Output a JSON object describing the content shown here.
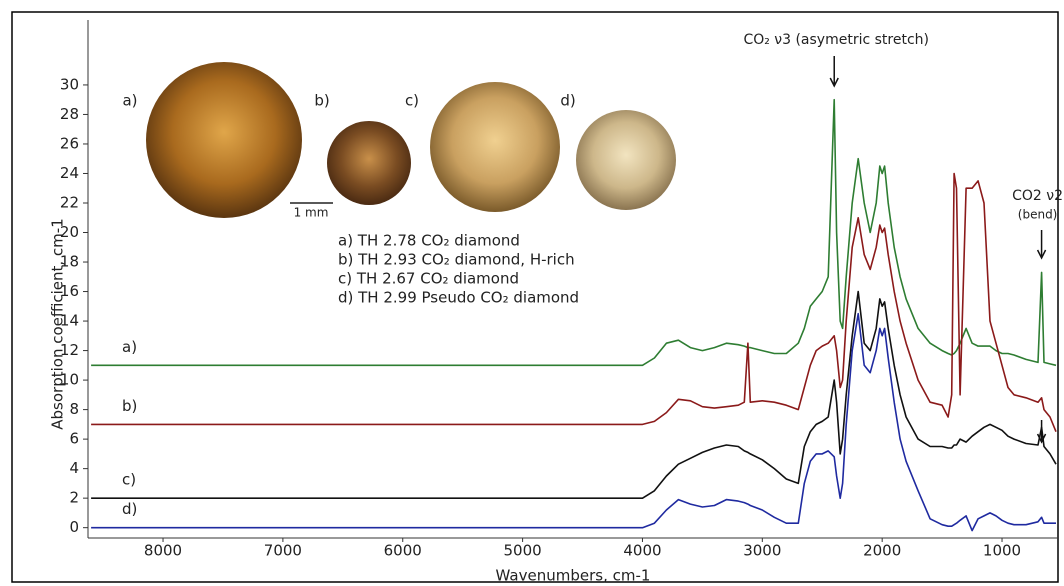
{
  "chart_data": {
    "type": "line",
    "xlabel": "Wavenumbers, cm-1",
    "ylabel": "Absorption coefficient, cm-1",
    "xlim": [
      8626,
      533
    ],
    "ylim": [
      -0.7,
      34.4
    ],
    "xticks": [
      8000,
      7000,
      6000,
      5000,
      4000,
      3000,
      2000,
      1000
    ],
    "yticks": [
      0,
      2,
      4,
      6,
      8,
      10,
      12,
      14,
      16,
      18,
      20,
      22,
      24,
      26,
      28,
      30
    ],
    "x": [
      8600,
      8000,
      7000,
      6000,
      5000,
      4200,
      4000,
      3900,
      3800,
      3700,
      3600,
      3500,
      3400,
      3300,
      3200,
      3150,
      3120,
      3100,
      3000,
      2900,
      2800,
      2700,
      2650,
      2600,
      2550,
      2500,
      2450,
      2400,
      2380,
      2350,
      2330,
      2300,
      2250,
      2200,
      2150,
      2100,
      2050,
      2020,
      2000,
      1980,
      1950,
      1900,
      1850,
      1800,
      1700,
      1600,
      1500,
      1450,
      1420,
      1400,
      1380,
      1350,
      1300,
      1250,
      1200,
      1150,
      1100,
      1050,
      1000,
      950,
      900,
      800,
      700,
      670,
      650,
      600,
      550
    ],
    "series": [
      {
        "name": "a) TH 2.78 CO₂ diamond",
        "label": "a)",
        "color": "#2e7d32",
        "values": [
          11,
          11,
          11,
          11,
          11,
          11,
          11,
          11.5,
          12.5,
          12.7,
          12.2,
          12.0,
          12.2,
          12.5,
          12.4,
          12.3,
          12.2,
          12.2,
          12.0,
          11.8,
          11.8,
          12.5,
          13.5,
          15,
          15.5,
          16,
          17,
          29,
          20,
          14,
          13.5,
          17,
          22,
          25,
          22,
          20,
          22,
          24.5,
          24,
          24.5,
          22,
          19,
          17,
          15.5,
          13.5,
          12.5,
          12,
          11.8,
          11.7,
          11.8,
          12,
          12.5,
          13.5,
          12.5,
          12.3,
          12.3,
          12.3,
          12,
          11.8,
          11.8,
          11.7,
          11.4,
          11.2,
          17.3,
          11.2,
          11.1,
          11.0
        ]
      },
      {
        "name": "b) TH 2.93 CO₂ diamond, H-rich",
        "label": "b)",
        "color": "#8b1a1a",
        "values": [
          7,
          7,
          7,
          7,
          7,
          7,
          7,
          7.2,
          7.8,
          8.7,
          8.6,
          8.2,
          8.1,
          8.2,
          8.3,
          8.5,
          12.5,
          8.5,
          8.6,
          8.5,
          8.3,
          8.0,
          9.5,
          11,
          12,
          12.3,
          12.5,
          13,
          12,
          9.5,
          10,
          14,
          19,
          21,
          18.5,
          17.5,
          19,
          20.5,
          20,
          20.3,
          18.5,
          16,
          14,
          12.5,
          10,
          8.5,
          8.3,
          7.5,
          9,
          24,
          23,
          9,
          23,
          23,
          23.5,
          22,
          14,
          12.5,
          11,
          9.5,
          9,
          8.8,
          8.5,
          8.8,
          8,
          7.5,
          6.5
        ]
      },
      {
        "name": "c) TH 2.67 CO₂ diamond",
        "label": "c)",
        "color": "#111111",
        "values": [
          2,
          2,
          2,
          2,
          2,
          2,
          2,
          2.5,
          3.5,
          4.3,
          4.7,
          5.1,
          5.4,
          5.6,
          5.5,
          5.2,
          5.1,
          5.0,
          4.6,
          4.0,
          3.3,
          3.0,
          5.5,
          6.5,
          7,
          7.2,
          7.5,
          10,
          8.5,
          5,
          6,
          9,
          13,
          16,
          12.5,
          12,
          13.5,
          15.5,
          15,
          15.3,
          13.5,
          11,
          9,
          7.5,
          6.0,
          5.5,
          5.5,
          5.4,
          5.4,
          5.6,
          5.6,
          6,
          5.8,
          6.2,
          6.5,
          6.8,
          7,
          6.8,
          6.6,
          6.2,
          6.0,
          5.7,
          5.6,
          6.8,
          5.5,
          5.0,
          4.3
        ]
      },
      {
        "name": "d) TH 2.99 Pseudo CO₂ diamond",
        "label": "d)",
        "color": "#1f2aa0",
        "values": [
          0,
          0,
          0,
          0,
          0,
          0,
          0,
          0.3,
          1.2,
          1.9,
          1.6,
          1.4,
          1.5,
          1.9,
          1.8,
          1.7,
          1.6,
          1.5,
          1.2,
          0.7,
          0.3,
          0.3,
          3.0,
          4.5,
          5,
          5,
          5.2,
          4.8,
          3.5,
          2.0,
          3,
          7,
          12,
          14.5,
          11,
          10.5,
          12,
          13.5,
          13,
          13.5,
          11.5,
          8.5,
          6,
          4.5,
          2.5,
          0.6,
          0.2,
          0.1,
          0.1,
          0.2,
          0.3,
          0.5,
          0.8,
          -0.2,
          0.6,
          0.8,
          1.0,
          0.8,
          0.5,
          0.3,
          0.2,
          0.2,
          0.4,
          0.7,
          0.3,
          0.3,
          0.3
        ]
      }
    ],
    "annotations": [
      {
        "text": "CO₂ ν3 (asymetric stretch)",
        "x": 2400
      },
      {
        "text": "CO2 ν2",
        "subtext": "(bend)",
        "x": 670
      }
    ],
    "stone_labels": [
      "a)",
      "b)",
      "c)",
      "d)"
    ],
    "scale_bar": "1 mm"
  }
}
